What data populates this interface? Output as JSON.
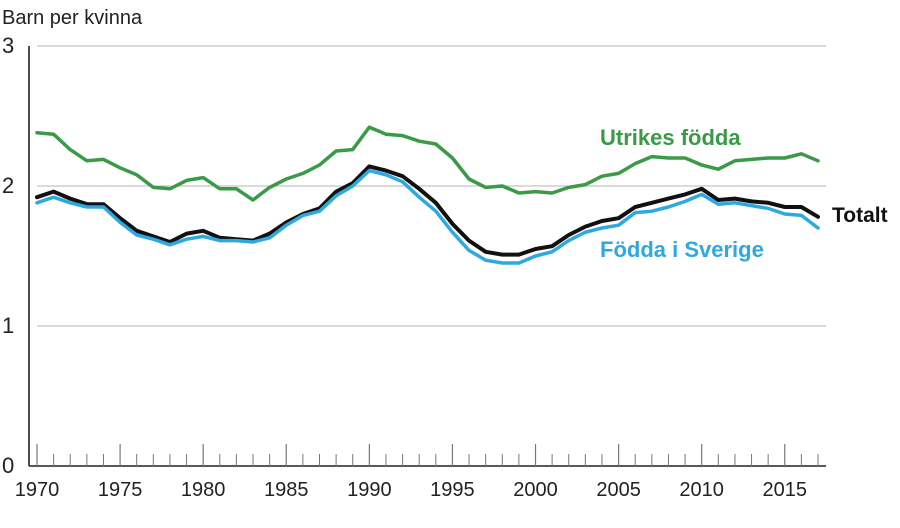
{
  "chart_data": {
    "type": "line",
    "ylabel": "Barn per kvinna",
    "xlim": [
      1970,
      2017
    ],
    "ylim": [
      0,
      3
    ],
    "y_ticks": [
      0,
      1,
      2,
      3
    ],
    "x_ticks": [
      1970,
      1975,
      1980,
      1985,
      1990,
      1995,
      2000,
      2005,
      2010,
      2015
    ],
    "grid": "horizontal",
    "x": [
      1970,
      1971,
      1972,
      1973,
      1974,
      1975,
      1976,
      1977,
      1978,
      1979,
      1980,
      1981,
      1982,
      1983,
      1984,
      1985,
      1986,
      1987,
      1988,
      1989,
      1990,
      1991,
      1992,
      1993,
      1994,
      1995,
      1996,
      1997,
      1998,
      1999,
      2000,
      2001,
      2002,
      2003,
      2004,
      2005,
      2006,
      2007,
      2008,
      2009,
      2010,
      2011,
      2012,
      2013,
      2014,
      2015,
      2016,
      2017
    ],
    "series": [
      {
        "name": "Utrikes födda",
        "color": "#3a9a48",
        "values": [
          2.38,
          2.37,
          2.26,
          2.18,
          2.19,
          2.13,
          2.08,
          1.99,
          1.98,
          2.04,
          2.06,
          1.98,
          1.98,
          1.9,
          1.99,
          2.05,
          2.09,
          2.15,
          2.25,
          2.26,
          2.42,
          2.37,
          2.36,
          2.32,
          2.3,
          2.2,
          2.05,
          1.99,
          2.0,
          1.95,
          1.96,
          1.95,
          1.99,
          2.01,
          2.07,
          2.09,
          2.16,
          2.21,
          2.2,
          2.2,
          2.15,
          2.12,
          2.18,
          2.19,
          2.2,
          2.2,
          2.23,
          2.18
        ]
      },
      {
        "name": "Totalt",
        "color": "#111111",
        "values": [
          1.92,
          1.96,
          1.91,
          1.87,
          1.87,
          1.77,
          1.68,
          1.64,
          1.6,
          1.66,
          1.68,
          1.63,
          1.62,
          1.61,
          1.66,
          1.74,
          1.8,
          1.84,
          1.96,
          2.02,
          2.14,
          2.11,
          2.07,
          1.98,
          1.88,
          1.73,
          1.61,
          1.53,
          1.51,
          1.51,
          1.55,
          1.57,
          1.65,
          1.71,
          1.75,
          1.77,
          1.85,
          1.88,
          1.91,
          1.94,
          1.98,
          1.9,
          1.91,
          1.89,
          1.88,
          1.85,
          1.85,
          1.78
        ]
      },
      {
        "name": "Födda i Sverige",
        "color": "#2ea8e0",
        "values": [
          1.88,
          1.92,
          1.88,
          1.85,
          1.85,
          1.74,
          1.65,
          1.62,
          1.58,
          1.62,
          1.64,
          1.61,
          1.61,
          1.6,
          1.63,
          1.72,
          1.79,
          1.82,
          1.93,
          2.0,
          2.11,
          2.08,
          2.03,
          1.92,
          1.82,
          1.67,
          1.54,
          1.47,
          1.45,
          1.45,
          1.5,
          1.53,
          1.61,
          1.67,
          1.7,
          1.72,
          1.81,
          1.82,
          1.85,
          1.89,
          1.94,
          1.87,
          1.88,
          1.86,
          1.84,
          1.8,
          1.79,
          1.7
        ]
      }
    ]
  }
}
